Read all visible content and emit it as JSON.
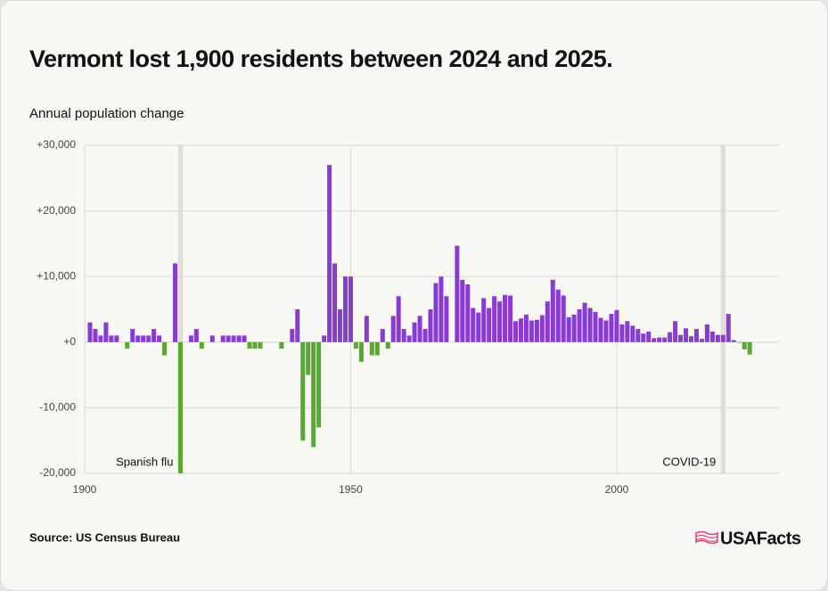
{
  "chart_data": {
    "type": "bar",
    "title": "Vermont lost 1,900 residents between 2024 and 2025.",
    "y_label": "Annual population change",
    "source": "Source: US Census Bureau",
    "brand": "USAFacts",
    "positive_color": "#8a3bd1",
    "negative_color": "#5aa832",
    "grid": true,
    "xlim": [
      1900,
      2030
    ],
    "xticks": [
      1900,
      1950,
      2000
    ],
    "ylim": [
      -20000,
      30000
    ],
    "yticks": [
      {
        "value": 30000,
        "label": "+30,000"
      },
      {
        "value": 20000,
        "label": "+20,000"
      },
      {
        "value": 10000,
        "label": "+10,000"
      },
      {
        "value": 0,
        "label": "+0"
      },
      {
        "value": -10000,
        "label": "-10,000"
      },
      {
        "value": -20000,
        "label": "-20,000"
      }
    ],
    "annotations": [
      {
        "text": "Spanish flu",
        "x": 1918
      },
      {
        "text": "COVID-19",
        "x": 2020
      }
    ],
    "x": [
      1901,
      1902,
      1903,
      1904,
      1905,
      1906,
      1907,
      1908,
      1909,
      1910,
      1911,
      1912,
      1913,
      1914,
      1915,
      1916,
      1917,
      1918,
      1919,
      1920,
      1921,
      1922,
      1923,
      1924,
      1925,
      1926,
      1927,
      1928,
      1929,
      1930,
      1931,
      1932,
      1933,
      1934,
      1935,
      1936,
      1937,
      1938,
      1939,
      1940,
      1941,
      1942,
      1943,
      1944,
      1945,
      1946,
      1947,
      1948,
      1949,
      1950,
      1951,
      1952,
      1953,
      1954,
      1955,
      1956,
      1957,
      1958,
      1959,
      1960,
      1961,
      1962,
      1963,
      1964,
      1965,
      1966,
      1967,
      1968,
      1969,
      1970,
      1971,
      1972,
      1973,
      1974,
      1975,
      1976,
      1977,
      1978,
      1979,
      1980,
      1981,
      1982,
      1983,
      1984,
      1985,
      1986,
      1987,
      1988,
      1989,
      1990,
      1991,
      1992,
      1993,
      1994,
      1995,
      1996,
      1997,
      1998,
      1999,
      2000,
      2001,
      2002,
      2003,
      2004,
      2005,
      2006,
      2007,
      2008,
      2009,
      2010,
      2011,
      2012,
      2013,
      2014,
      2015,
      2016,
      2017,
      2018,
      2019,
      2020,
      2021,
      2022,
      2023,
      2024,
      2025
    ],
    "values": [
      3000,
      2000,
      1000,
      3000,
      1000,
      1000,
      0,
      -1000,
      2000,
      1000,
      1000,
      1000,
      2000,
      1000,
      -2000,
      0,
      12000,
      -20000,
      0,
      1000,
      2000,
      -1000,
      0,
      1000,
      0,
      1000,
      1000,
      1000,
      1000,
      1000,
      -1000,
      -1000,
      -1000,
      0,
      0,
      0,
      -1000,
      0,
      2000,
      5000,
      -15000,
      -5000,
      -16000,
      -13000,
      1000,
      27000,
      12000,
      5000,
      10000,
      10000,
      -1000,
      -3000,
      4000,
      -2000,
      -2000,
      2000,
      -1000,
      4000,
      7000,
      2000,
      1000,
      3000,
      4000,
      2000,
      5000,
      9000,
      10000,
      7000,
      0,
      14700,
      9500,
      8800,
      5200,
      4500,
      6700,
      5200,
      7000,
      6200,
      7200,
      7100,
      3200,
      3600,
      4200,
      3300,
      3400,
      4100,
      6200,
      9500,
      8000,
      7100,
      3800,
      4200,
      5000,
      6000,
      5200,
      4600,
      3700,
      3300,
      4300,
      4900,
      2700,
      3200,
      2500,
      2000,
      1300,
      1600,
      600,
      700,
      700,
      1500,
      3200,
      1100,
      2100,
      900,
      2000,
      500,
      2700,
      1600,
      1100,
      1100,
      4300,
      300,
      -100,
      -1100,
      -1900
    ]
  }
}
